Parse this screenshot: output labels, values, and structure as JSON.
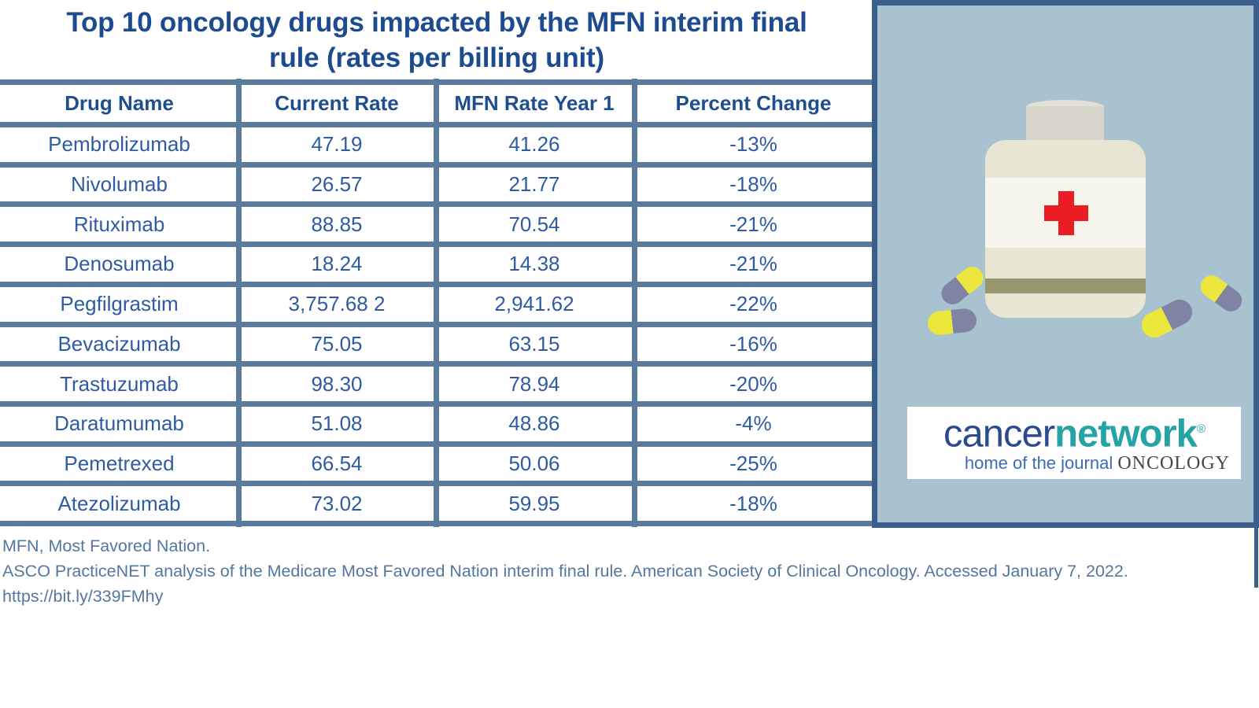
{
  "title_lines": [
    "Top 10 oncology drugs impacted by the MFN interim final",
    "rule (rates per billing unit)"
  ],
  "chart_data": {
    "type": "table",
    "title": "Top 10 oncology drugs impacted by the MFN interim final rule (rates per billing unit)",
    "columns": [
      "Drug Name",
      "Current Rate",
      "MFN Rate Year 1",
      "Percent Change"
    ],
    "rows": [
      [
        "Pembrolizumab",
        "47.19",
        "41.26",
        "-13%"
      ],
      [
        "Nivolumab",
        "26.57",
        "21.77",
        "-18%"
      ],
      [
        "Rituximab",
        "88.85",
        "70.54",
        "-21%"
      ],
      [
        "Denosumab",
        "18.24",
        "14.38",
        "-21%"
      ],
      [
        "Pegfilgrastim",
        "3,757.68 2",
        "2,941.62",
        "-22%"
      ],
      [
        "Bevacizumab",
        "75.05",
        "63.15",
        "-16%"
      ],
      [
        "Trastuzumab",
        "98.30",
        "78.94",
        "-20%"
      ],
      [
        "Daratumumab",
        "51.08",
        "48.86",
        "-4%"
      ],
      [
        "Pemetrexed",
        "66.54",
        "50.06",
        "-25%"
      ],
      [
        "Atezolizumab",
        "73.02",
        "59.95",
        "-18%"
      ]
    ]
  },
  "footnotes": [
    "MFN, Most Favored Nation.",
    "ASCO PracticeNET analysis of the Medicare Most Favored Nation interim final rule. American Society of Clinical Oncology. Accessed January 7, 2022.",
    "https://bit.ly/339FMhy"
  ],
  "logo": {
    "brand_part1": "cancer",
    "brand_part2": "network",
    "registered_mark": "®",
    "tagline_prefix": "home of the journal ",
    "tagline_journal": "ONCOLOGY"
  },
  "illustration": {
    "icon_names": [
      "medicine-bottle-icon",
      "red-cross-icon",
      "pill-capsule-icon"
    ]
  },
  "colors": {
    "title_text": "#1d4b8f",
    "cell_text": "#2e5ba1",
    "table_rule": "#5b7b9c",
    "sidebar_border": "#3a5f8c",
    "sidebar_background": "#a8c3cf",
    "footnote_text": "#54779f",
    "logo_navy": "#2b4a8f",
    "logo_teal": "#26a3a5",
    "cross_red": "#ec1c24",
    "pill_yellow": "#ece73c",
    "pill_purple": "#8183a4",
    "bottle_cream": "#e8e6d2"
  }
}
